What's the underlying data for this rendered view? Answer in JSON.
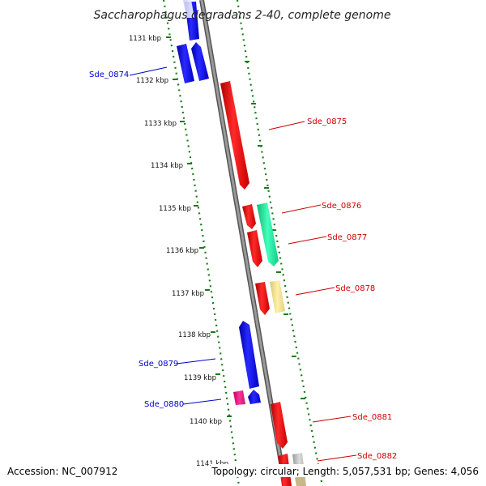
{
  "title": "Saccharophagus degradans 2-40, complete genome",
  "footer": {
    "accession": "Accession: NC_007912",
    "summary": "Topology: circular; Length: 5,057,531 bp; Genes: 4,056"
  },
  "kbp_ticks": [
    "1131 kbp",
    "1132 kbp",
    "1133 kbp",
    "1134 kbp",
    "1135 kbp",
    "1136 kbp",
    "1137 kbp",
    "1138 kbp",
    "1139 kbp",
    "1140 kbp",
    "1141 kbp"
  ],
  "gene_labels": {
    "Sde_0874": "Sde_0874",
    "Sde_0875": "Sde_0875",
    "Sde_0876": "Sde_0876",
    "Sde_0877": "Sde_0877",
    "Sde_0878": "Sde_0878",
    "Sde_0879": "Sde_0879",
    "Sde_0880": "Sde_0880",
    "Sde_0881": "Sde_0881",
    "Sde_0882": "Sde_0882"
  },
  "colors": {
    "reverse_strand_label": "#0000cc",
    "forward_strand_label": "#cc0000",
    "backbone": "#808080",
    "tick": "#1a7a1a",
    "blue_gene": "#0000ee",
    "red_gene": "#ee0000",
    "green_gene": "#22dd99",
    "yellow_gene": "#eedd88",
    "magenta_gene": "#ee1177",
    "grey_gene": "#bbbbbb"
  }
}
